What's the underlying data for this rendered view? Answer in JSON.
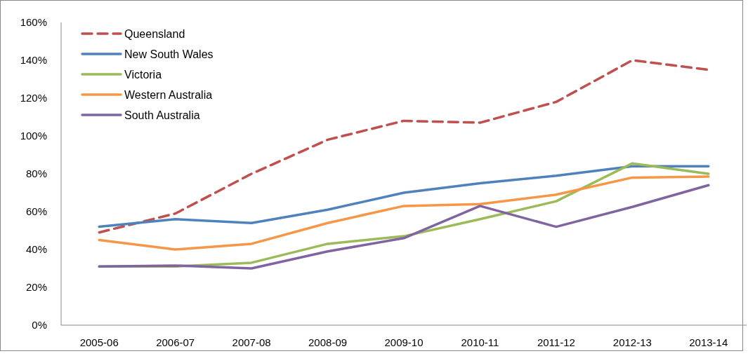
{
  "chart_data": {
    "type": "line",
    "categories": [
      "2005-06",
      "2006-07",
      "2007-08",
      "2008-09",
      "2009-10",
      "2010-11",
      "2011-12",
      "2012-13",
      "2013-14"
    ],
    "ylim": [
      0,
      160
    ],
    "yticks": [
      {
        "value": 0,
        "label": "0%"
      },
      {
        "value": 20,
        "label": "20%"
      },
      {
        "value": 40,
        "label": "40%"
      },
      {
        "value": 60,
        "label": "60%"
      },
      {
        "value": 80,
        "label": "80%"
      },
      {
        "value": 100,
        "label": "100%"
      },
      {
        "value": 120,
        "label": "120%"
      },
      {
        "value": 140,
        "label": "140%"
      },
      {
        "value": 160,
        "label": "160%"
      }
    ],
    "grid": false,
    "legend": "top left",
    "marker": "none",
    "series": [
      {
        "name": "Queensland",
        "color": "#c0504d",
        "line_style": "dashed",
        "values": [
          49,
          59,
          80,
          98,
          108,
          107,
          118,
          140,
          135
        ]
      },
      {
        "name": "New South Wales",
        "color": "#4f81bd",
        "values": [
          52,
          56,
          54,
          61,
          70,
          75,
          79,
          84,
          84
        ]
      },
      {
        "name": "Victoria",
        "color": "#9bbb59",
        "values": [
          31,
          31,
          33,
          43,
          47,
          56,
          65.5,
          85.5,
          80
        ]
      },
      {
        "name": "Western Australia",
        "color": "#f79646",
        "values": [
          45,
          40,
          43,
          54,
          63,
          64,
          69,
          78,
          78.5
        ]
      },
      {
        "name": "South Australia",
        "color": "#8064a2",
        "values": [
          31,
          31.5,
          30,
          39,
          46,
          63,
          52,
          62.5,
          74
        ]
      }
    ]
  }
}
